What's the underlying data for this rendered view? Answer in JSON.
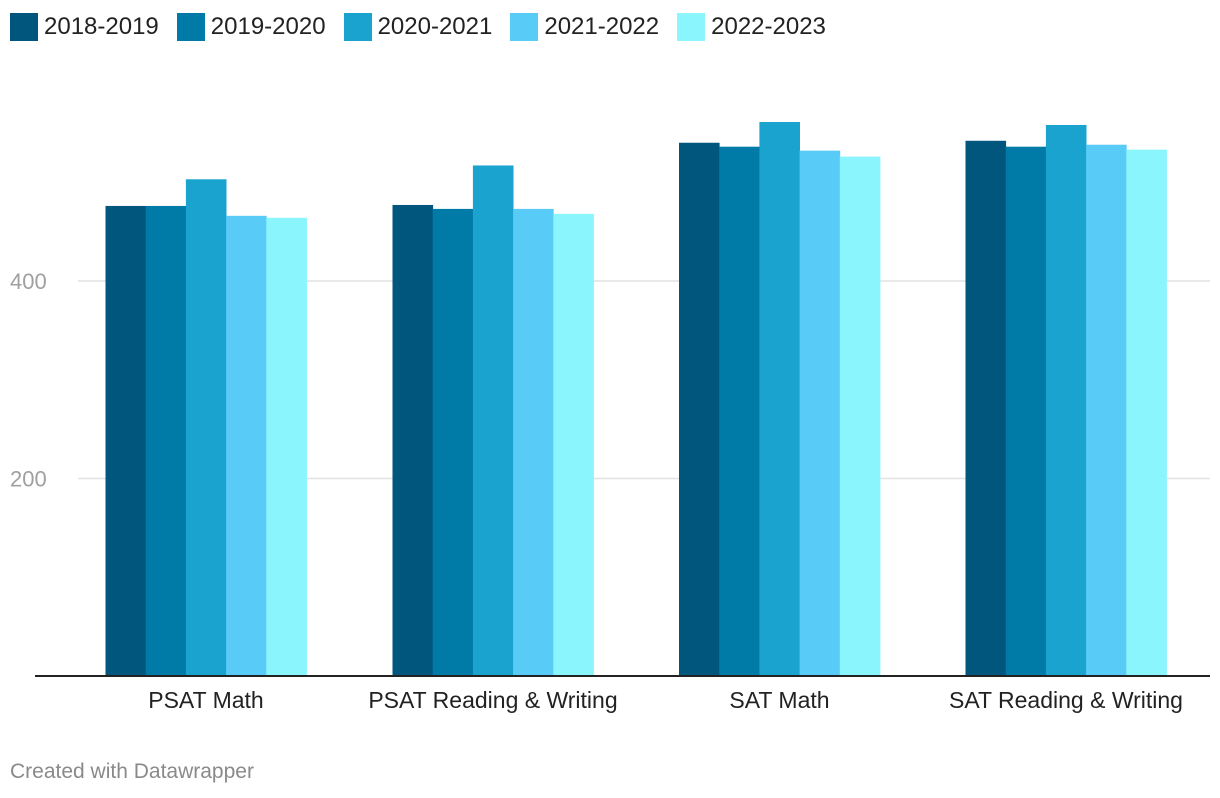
{
  "chart_data": {
    "type": "bar",
    "categories": [
      "PSAT Math",
      "PSAT Reading & Writing",
      "SAT Math",
      "SAT Reading & Writing"
    ],
    "series": [
      {
        "name": "2018-2019",
        "color": "#00567d",
        "values": [
          476,
          477,
          540,
          542
        ]
      },
      {
        "name": "2019-2020",
        "color": "#007aa6",
        "values": [
          476,
          473,
          536,
          536
        ]
      },
      {
        "name": "2020-2021",
        "color": "#1ba3d0",
        "values": [
          503,
          517,
          561,
          558
        ]
      },
      {
        "name": "2021-2022",
        "color": "#59cbf7",
        "values": [
          466,
          473,
          532,
          538
        ]
      },
      {
        "name": "2022-2023",
        "color": "#8af5fd",
        "values": [
          464,
          468,
          526,
          533
        ]
      }
    ],
    "y_ticks": [
      200,
      400
    ],
    "ylim": [
      0,
      600
    ],
    "grid": true,
    "legend_position": "top-left",
    "title": "",
    "xlabel": "",
    "ylabel": ""
  },
  "footer": "Created with Datawrapper"
}
